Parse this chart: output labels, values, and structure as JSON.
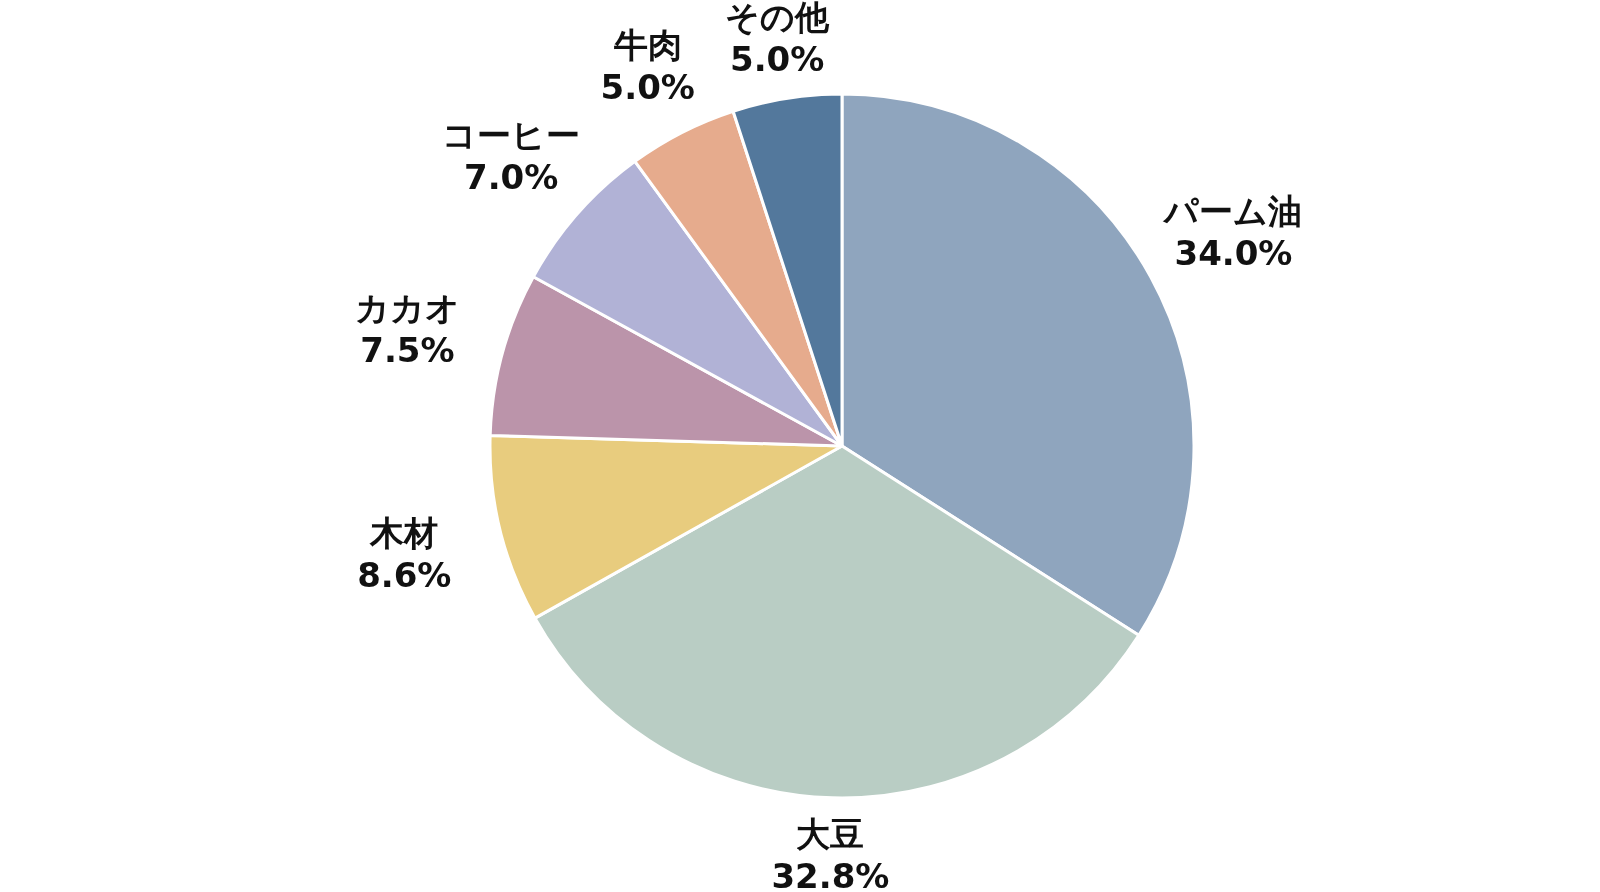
{
  "chart_data": {
    "type": "pie",
    "categories": [
      "パーム油",
      "大豆",
      "木材",
      "カカオ",
      "コーヒー",
      "牛肉",
      "その他"
    ],
    "values": [
      34.0,
      32.8,
      8.6,
      7.5,
      7.0,
      5.0,
      5.0
    ],
    "value_labels": [
      "34.0%",
      "32.8%",
      "8.6%",
      "7.5%",
      "7.0%",
      "5.0%",
      "5.0%"
    ],
    "colors": [
      "#8fa5be",
      "#b9cdc4",
      "#e8cc7e",
      "#bb94aa",
      "#b1b2d6",
      "#e6ab8d",
      "#53789c"
    ]
  }
}
